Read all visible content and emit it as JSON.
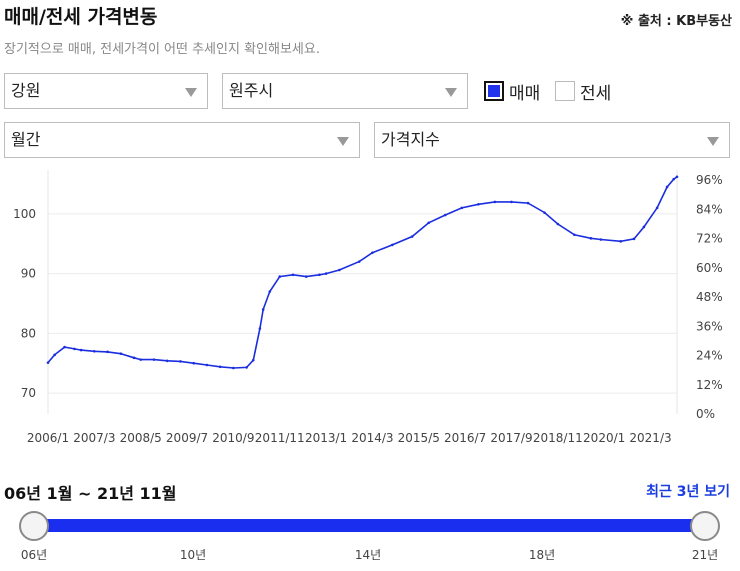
{
  "header": {
    "title": "매매/전세 가격변동",
    "source": "※ 출처 : KB부동산",
    "subtitle": "장기적으로 매매, 전세가격이 어떤 추세인지 확인해보세요."
  },
  "filters": {
    "region": "강원",
    "city": "원주시",
    "period": "월간",
    "metric": "가격지수",
    "sale_label": "매매",
    "sale_checked": true,
    "jeonse_label": "전세",
    "jeonse_checked": false
  },
  "chart_data": {
    "type": "line",
    "x_ticks": [
      "2006/1",
      "2007/3",
      "2008/5",
      "2009/7",
      "2010/9",
      "2011/11",
      "2013/1",
      "2014/3",
      "2015/5",
      "2016/7",
      "2017/9",
      "2018/11",
      "2020/1",
      "2021/3"
    ],
    "y_left_ticks": [
      70,
      80,
      90,
      100
    ],
    "y_right_ticks": [
      "0%",
      "12%",
      "24%",
      "36%",
      "48%",
      "60%",
      "72%",
      "84%",
      "96%"
    ],
    "ylim": [
      66.5,
      106.5
    ],
    "grid": true,
    "line_color": "#1a2ee0",
    "series": [
      {
        "x": [
          "2006/1",
          "2006/3",
          "2006/6",
          "2006/9",
          "2006/11",
          "2007/3",
          "2007/7",
          "2007/11",
          "2008/3",
          "2008/5",
          "2008/9",
          "2009/1",
          "2009/5",
          "2009/9",
          "2010/1",
          "2010/5",
          "2010/9",
          "2011/1",
          "2011/3",
          "2011/5",
          "2011/6",
          "2011/8",
          "2011/11",
          "2012/3",
          "2012/7",
          "2012/11",
          "2013/1",
          "2013/5",
          "2013/11",
          "2014/3",
          "2014/9",
          "2015/3",
          "2015/8",
          "2016/1",
          "2016/6",
          "2016/11",
          "2017/4",
          "2017/9",
          "2018/2",
          "2018/7",
          "2018/11",
          "2019/4",
          "2019/9",
          "2019/12",
          "2020/6",
          "2020/10",
          "2021/1",
          "2021/5",
          "2021/8",
          "2021/10",
          "2021/11"
        ],
        "values": [
          75.1,
          76.4,
          77.7,
          77.4,
          77.2,
          77.0,
          76.9,
          76.6,
          75.9,
          75.6,
          75.6,
          75.4,
          75.3,
          75.0,
          74.7,
          74.4,
          74.2,
          74.3,
          75.5,
          80.8,
          84.0,
          87.0,
          89.5,
          89.8,
          89.5,
          89.8,
          90.0,
          90.6,
          92.0,
          93.5,
          94.8,
          96.2,
          98.5,
          99.8,
          101.0,
          101.6,
          102.0,
          102.0,
          101.8,
          100.2,
          98.3,
          96.5,
          95.9,
          95.7,
          95.4,
          95.8,
          97.8,
          101.0,
          104.5,
          105.8,
          106.2
        ]
      }
    ]
  },
  "range": {
    "label": "06년 1월 ~ 21년 11월",
    "recent_button": "최근 3년 보기",
    "start_fraction": 0,
    "end_fraction": 1,
    "year_labels": [
      "06년",
      "10년",
      "14년",
      "18년",
      "21년"
    ]
  }
}
